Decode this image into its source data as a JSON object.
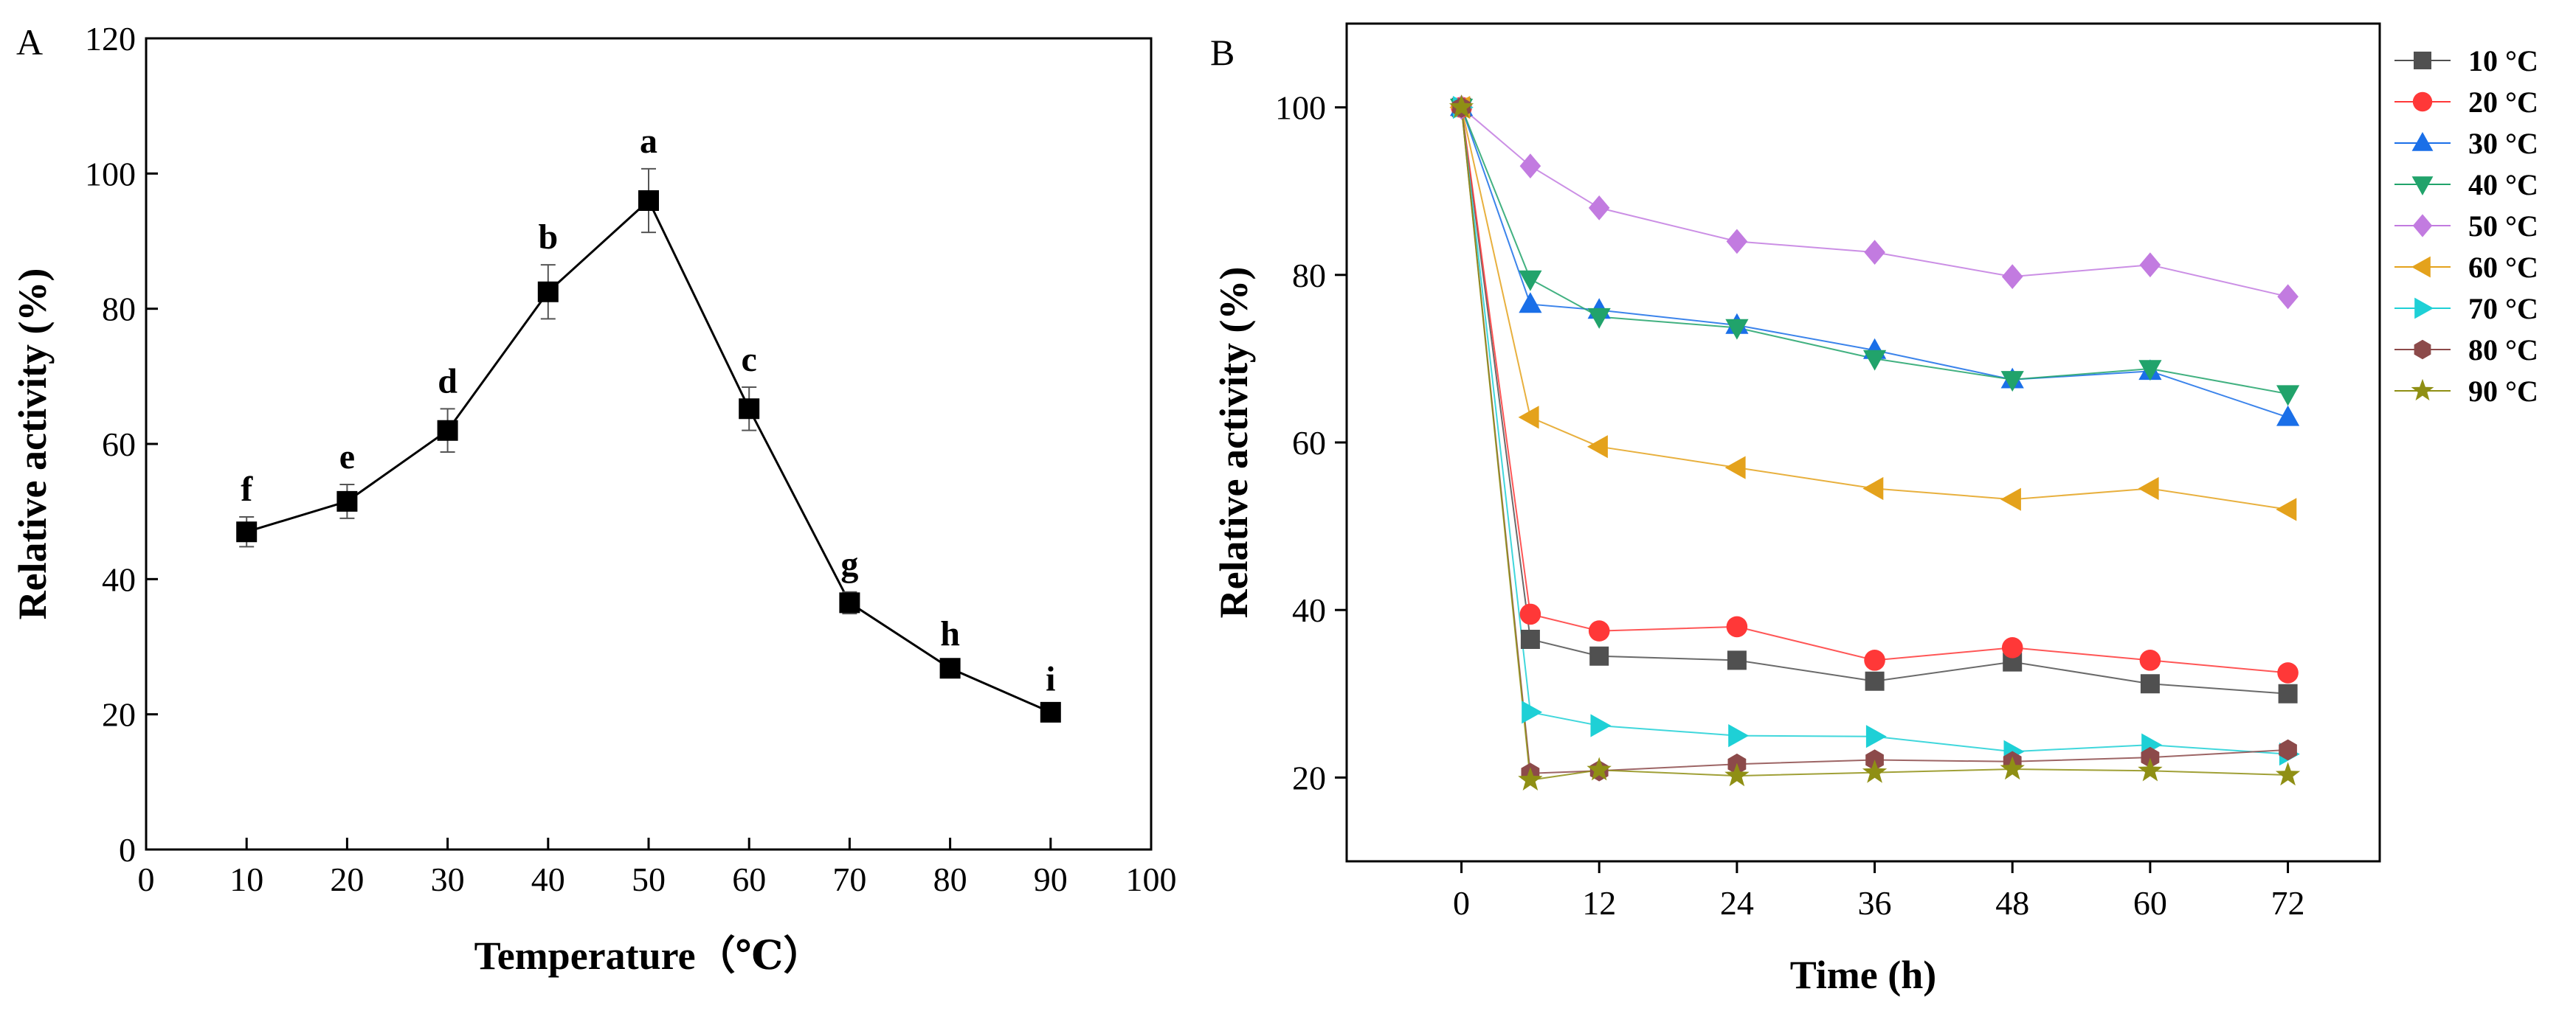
{
  "chart_data": [
    {
      "panel": "A",
      "type": "line",
      "xlabel": "Temperature（℃）",
      "ylabel": "Relative activity (%)",
      "xlim": [
        0,
        100
      ],
      "ylim": [
        0,
        120
      ],
      "x_ticks": [
        0,
        10,
        20,
        30,
        40,
        50,
        60,
        70,
        80,
        90,
        100
      ],
      "y_ticks": [
        0,
        20,
        40,
        60,
        80,
        100,
        120
      ],
      "grid": false,
      "marker": "square",
      "color": "#000000",
      "series": [
        {
          "x": [
            10,
            20,
            30,
            40,
            50,
            60,
            70,
            80,
            90
          ],
          "values": [
            47,
            51.5,
            62,
            82.5,
            96,
            65.2,
            36.5,
            26.8,
            20.3
          ],
          "errors": [
            2.2,
            2.5,
            3.2,
            4.0,
            4.7,
            3.2,
            1.6,
            1.0,
            0.8
          ],
          "labels": [
            "f",
            "e",
            "d",
            "b",
            "a",
            "c",
            "g",
            "h",
            "i"
          ]
        }
      ]
    },
    {
      "panel": "B",
      "type": "line",
      "xlabel": "Time (h)",
      "ylabel": "Relative activity (%)",
      "xlim": [
        -10,
        80
      ],
      "ylim": [
        10,
        110
      ],
      "x_ticks": [
        0,
        12,
        24,
        36,
        48,
        60,
        72
      ],
      "y_ticks": [
        20,
        40,
        60,
        80,
        100
      ],
      "grid": false,
      "legend_position": "right",
      "x": [
        0,
        6,
        12,
        24,
        36,
        48,
        60,
        72
      ],
      "series": [
        {
          "name": "10 °C",
          "marker": "square",
          "color": "#505050",
          "values": [
            100,
            36.5,
            34.5,
            34,
            31.5,
            33.8,
            31.2,
            30
          ]
        },
        {
          "name": "20 °C",
          "marker": "circle",
          "color": "#ff3838",
          "values": [
            100,
            39.5,
            37.5,
            38,
            34,
            35.5,
            34,
            32.5
          ]
        },
        {
          "name": "30 °C",
          "marker": "triangle-up",
          "color": "#1a6fe8",
          "values": [
            100,
            76.5,
            75.8,
            74,
            71,
            67.5,
            68.5,
            63
          ]
        },
        {
          "name": "40 °C",
          "marker": "triangle-down",
          "color": "#21a36b",
          "values": [
            100,
            79.5,
            75,
            73.7,
            70,
            67.5,
            68.8,
            65.8
          ]
        },
        {
          "name": "50 °C",
          "marker": "diamond",
          "color": "#c27be0",
          "values": [
            100,
            93,
            88,
            84,
            82.7,
            79.8,
            81.2,
            77.4
          ]
        },
        {
          "name": "60 °C",
          "marker": "triangle-left",
          "color": "#e4a21c",
          "values": [
            100,
            63,
            59.5,
            57,
            54.5,
            53.2,
            54.5,
            52
          ]
        },
        {
          "name": "70 °C",
          "marker": "triangle-right",
          "color": "#1ed0d6",
          "values": [
            100,
            27.8,
            26.2,
            25,
            24.9,
            23.1,
            23.9,
            22.8
          ]
        },
        {
          "name": "80 °C",
          "marker": "hexagon",
          "color": "#8c4a4a",
          "values": [
            100,
            20.5,
            20.8,
            21.6,
            22.1,
            21.9,
            22.4,
            23.3
          ]
        },
        {
          "name": "90 °C",
          "marker": "star",
          "color": "#8f8f14",
          "values": [
            100,
            19.7,
            20.9,
            20.2,
            20.6,
            21,
            20.8,
            20.3
          ]
        }
      ]
    }
  ]
}
